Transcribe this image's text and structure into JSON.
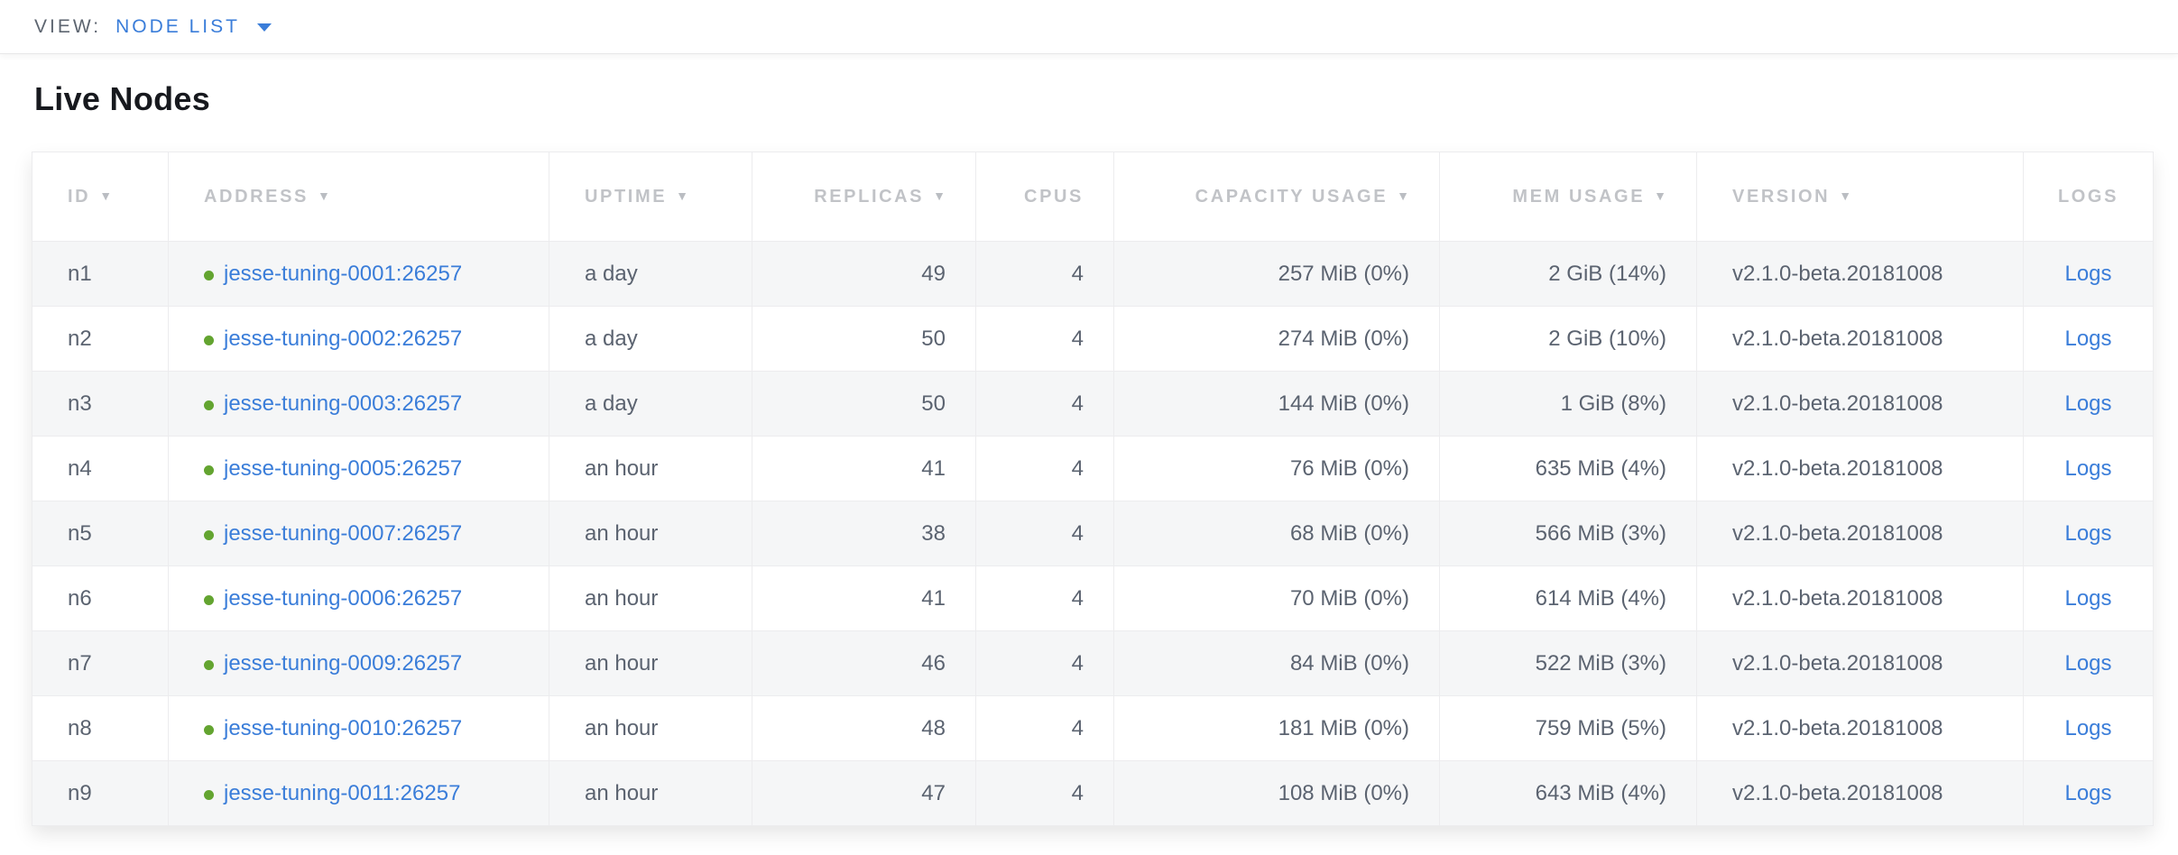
{
  "view_bar": {
    "label": "VIEW:",
    "selected_view": "NODE LIST"
  },
  "section": {
    "title": "Live Nodes"
  },
  "colors": {
    "accent_blue": "#3a7dd9",
    "status_green": "#63a430"
  },
  "table": {
    "sort_icon": "▼",
    "columns": [
      {
        "key": "id",
        "label": "ID",
        "sortable": true,
        "align": "left"
      },
      {
        "key": "address",
        "label": "ADDRESS",
        "sortable": true,
        "align": "left"
      },
      {
        "key": "uptime",
        "label": "UPTIME",
        "sortable": true,
        "align": "left"
      },
      {
        "key": "replicas",
        "label": "REPLICAS",
        "sortable": true,
        "align": "right"
      },
      {
        "key": "cpus",
        "label": "CPUS",
        "sortable": false,
        "align": "right"
      },
      {
        "key": "capacity",
        "label": "CAPACITY USAGE",
        "sortable": true,
        "align": "right"
      },
      {
        "key": "mem",
        "label": "MEM USAGE",
        "sortable": true,
        "align": "right"
      },
      {
        "key": "version",
        "label": "VERSION",
        "sortable": true,
        "align": "left"
      },
      {
        "key": "logs",
        "label": "LOGS",
        "sortable": false,
        "align": "center"
      }
    ],
    "rows": [
      {
        "id": "n1",
        "status": "live",
        "address": "jesse-tuning-0001:26257",
        "uptime": "a day",
        "replicas": "49",
        "cpus": "4",
        "capacity": "257 MiB (0%)",
        "mem": "2 GiB (14%)",
        "version": "v2.1.0-beta.20181008",
        "logs": "Logs"
      },
      {
        "id": "n2",
        "status": "live",
        "address": "jesse-tuning-0002:26257",
        "uptime": "a day",
        "replicas": "50",
        "cpus": "4",
        "capacity": "274 MiB (0%)",
        "mem": "2 GiB (10%)",
        "version": "v2.1.0-beta.20181008",
        "logs": "Logs"
      },
      {
        "id": "n3",
        "status": "live",
        "address": "jesse-tuning-0003:26257",
        "uptime": "a day",
        "replicas": "50",
        "cpus": "4",
        "capacity": "144 MiB (0%)",
        "mem": "1 GiB (8%)",
        "version": "v2.1.0-beta.20181008",
        "logs": "Logs"
      },
      {
        "id": "n4",
        "status": "live",
        "address": "jesse-tuning-0005:26257",
        "uptime": "an hour",
        "replicas": "41",
        "cpus": "4",
        "capacity": "76 MiB (0%)",
        "mem": "635 MiB (4%)",
        "version": "v2.1.0-beta.20181008",
        "logs": "Logs"
      },
      {
        "id": "n5",
        "status": "live",
        "address": "jesse-tuning-0007:26257",
        "uptime": "an hour",
        "replicas": "38",
        "cpus": "4",
        "capacity": "68 MiB (0%)",
        "mem": "566 MiB (3%)",
        "version": "v2.1.0-beta.20181008",
        "logs": "Logs"
      },
      {
        "id": "n6",
        "status": "live",
        "address": "jesse-tuning-0006:26257",
        "uptime": "an hour",
        "replicas": "41",
        "cpus": "4",
        "capacity": "70 MiB (0%)",
        "mem": "614 MiB (4%)",
        "version": "v2.1.0-beta.20181008",
        "logs": "Logs"
      },
      {
        "id": "n7",
        "status": "live",
        "address": "jesse-tuning-0009:26257",
        "uptime": "an hour",
        "replicas": "46",
        "cpus": "4",
        "capacity": "84 MiB (0%)",
        "mem": "522 MiB (3%)",
        "version": "v2.1.0-beta.20181008",
        "logs": "Logs"
      },
      {
        "id": "n8",
        "status": "live",
        "address": "jesse-tuning-0010:26257",
        "uptime": "an hour",
        "replicas": "48",
        "cpus": "4",
        "capacity": "181 MiB (0%)",
        "mem": "759 MiB (5%)",
        "version": "v2.1.0-beta.20181008",
        "logs": "Logs"
      },
      {
        "id": "n9",
        "status": "live",
        "address": "jesse-tuning-0011:26257",
        "uptime": "an hour",
        "replicas": "47",
        "cpus": "4",
        "capacity": "108 MiB (0%)",
        "mem": "643 MiB (4%)",
        "version": "v2.1.0-beta.20181008",
        "logs": "Logs"
      }
    ]
  }
}
